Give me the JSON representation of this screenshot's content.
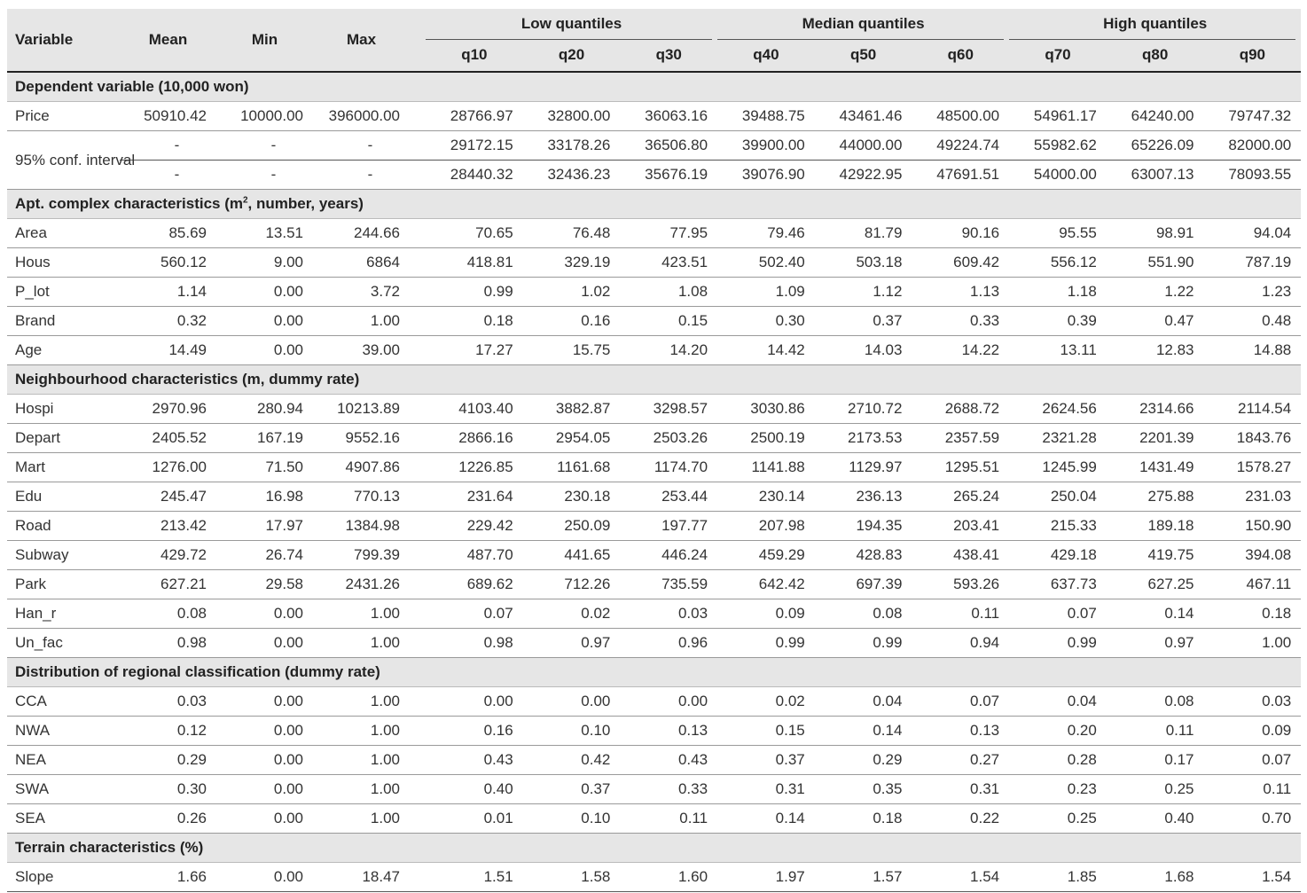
{
  "header": {
    "variable": "Variable",
    "mean": "Mean",
    "min": "Min",
    "max": "Max",
    "groups": [
      "Low quantiles",
      "Median quantiles",
      "High quantiles"
    ],
    "quantiles": [
      "q10",
      "q20",
      "q30",
      "q40",
      "q50",
      "q60",
      "q70",
      "q80",
      "q90"
    ]
  },
  "sections": {
    "dep": "Dependent variable (10,000 won)",
    "apt_pre": "Apt. complex characteristics (m",
    "apt_sup": "2",
    "apt_post": ", number, years)",
    "neigh": "Neighbourhood characteristics (m, dummy rate)",
    "dist": "Distribution of regional classification (dummy rate)",
    "terrain": "Terrain characteristics (%)"
  },
  "price": {
    "label": "Price",
    "v": [
      "50910.42",
      "10000.00",
      "396000.00",
      "28766.97",
      "32800.00",
      "36063.16",
      "39488.75",
      "43461.46",
      "48500.00",
      "54961.17",
      "64240.00",
      "79747.32"
    ]
  },
  "ci": {
    "label": "95% conf. interval",
    "upper": [
      "-",
      "-",
      "-",
      "29172.15",
      "33178.26",
      "36506.80",
      "39900.00",
      "44000.00",
      "49224.74",
      "55982.62",
      "65226.09",
      "82000.00"
    ],
    "lower": [
      "-",
      "-",
      "-",
      "28440.32",
      "32436.23",
      "35676.19",
      "39076.90",
      "42922.95",
      "47691.51",
      "54000.00",
      "63007.13",
      "78093.55"
    ]
  },
  "apt": [
    {
      "label": "Area",
      "v": [
        "85.69",
        "13.51",
        "244.66",
        "70.65",
        "76.48",
        "77.95",
        "79.46",
        "81.79",
        "90.16",
        "95.55",
        "98.91",
        "94.04"
      ]
    },
    {
      "label": "Hous",
      "v": [
        "560.12",
        "9.00",
        "6864",
        "418.81",
        "329.19",
        "423.51",
        "502.40",
        "503.18",
        "609.42",
        "556.12",
        "551.90",
        "787.19"
      ]
    },
    {
      "label": "P_lot",
      "v": [
        "1.14",
        "0.00",
        "3.72",
        "0.99",
        "1.02",
        "1.08",
        "1.09",
        "1.12",
        "1.13",
        "1.18",
        "1.22",
        "1.23"
      ]
    },
    {
      "label": "Brand",
      "v": [
        "0.32",
        "0.00",
        "1.00",
        "0.18",
        "0.16",
        "0.15",
        "0.30",
        "0.37",
        "0.33",
        "0.39",
        "0.47",
        "0.48"
      ]
    },
    {
      "label": "Age",
      "v": [
        "14.49",
        "0.00",
        "39.00",
        "17.27",
        "15.75",
        "14.20",
        "14.42",
        "14.03",
        "14.22",
        "13.11",
        "12.83",
        "14.88"
      ]
    }
  ],
  "neigh": [
    {
      "label": "Hospi",
      "v": [
        "2970.96",
        "280.94",
        "10213.89",
        "4103.40",
        "3882.87",
        "3298.57",
        "3030.86",
        "2710.72",
        "2688.72",
        "2624.56",
        "2314.66",
        "2114.54"
      ]
    },
    {
      "label": "Depart",
      "v": [
        "2405.52",
        "167.19",
        "9552.16",
        "2866.16",
        "2954.05",
        "2503.26",
        "2500.19",
        "2173.53",
        "2357.59",
        "2321.28",
        "2201.39",
        "1843.76"
      ]
    },
    {
      "label": "Mart",
      "v": [
        "1276.00",
        "71.50",
        "4907.86",
        "1226.85",
        "1161.68",
        "1174.70",
        "1141.88",
        "1129.97",
        "1295.51",
        "1245.99",
        "1431.49",
        "1578.27"
      ]
    },
    {
      "label": "Edu",
      "v": [
        "245.47",
        "16.98",
        "770.13",
        "231.64",
        "230.18",
        "253.44",
        "230.14",
        "236.13",
        "265.24",
        "250.04",
        "275.88",
        "231.03"
      ]
    },
    {
      "label": "Road",
      "v": [
        "213.42",
        "17.97",
        "1384.98",
        "229.42",
        "250.09",
        "197.77",
        "207.98",
        "194.35",
        "203.41",
        "215.33",
        "189.18",
        "150.90"
      ]
    },
    {
      "label": "Subway",
      "v": [
        "429.72",
        "26.74",
        "799.39",
        "487.70",
        "441.65",
        "446.24",
        "459.29",
        "428.83",
        "438.41",
        "429.18",
        "419.75",
        "394.08"
      ]
    },
    {
      "label": "Park",
      "v": [
        "627.21",
        "29.58",
        "2431.26",
        "689.62",
        "712.26",
        "735.59",
        "642.42",
        "697.39",
        "593.26",
        "637.73",
        "627.25",
        "467.11"
      ]
    },
    {
      "label": "Han_r",
      "v": [
        "0.08",
        "0.00",
        "1.00",
        "0.07",
        "0.02",
        "0.03",
        "0.09",
        "0.08",
        "0.11",
        "0.07",
        "0.14",
        "0.18"
      ]
    },
    {
      "label": "Un_fac",
      "v": [
        "0.98",
        "0.00",
        "1.00",
        "0.98",
        "0.97",
        "0.96",
        "0.99",
        "0.99",
        "0.94",
        "0.99",
        "0.97",
        "1.00"
      ]
    }
  ],
  "dist": [
    {
      "label": "CCA",
      "v": [
        "0.03",
        "0.00",
        "1.00",
        "0.00",
        "0.00",
        "0.00",
        "0.02",
        "0.04",
        "0.07",
        "0.04",
        "0.08",
        "0.03"
      ]
    },
    {
      "label": "NWA",
      "v": [
        "0.12",
        "0.00",
        "1.00",
        "0.16",
        "0.10",
        "0.13",
        "0.15",
        "0.14",
        "0.13",
        "0.20",
        "0.11",
        "0.09"
      ]
    },
    {
      "label": "NEA",
      "v": [
        "0.29",
        "0.00",
        "1.00",
        "0.43",
        "0.42",
        "0.43",
        "0.37",
        "0.29",
        "0.27",
        "0.28",
        "0.17",
        "0.07"
      ]
    },
    {
      "label": "SWA",
      "v": [
        "0.30",
        "0.00",
        "1.00",
        "0.40",
        "0.37",
        "0.33",
        "0.31",
        "0.35",
        "0.31",
        "0.23",
        "0.25",
        "0.11"
      ]
    },
    {
      "label": "SEA",
      "v": [
        "0.26",
        "0.00",
        "1.00",
        "0.01",
        "0.10",
        "0.11",
        "0.14",
        "0.18",
        "0.22",
        "0.25",
        "0.40",
        "0.70"
      ]
    }
  ],
  "terrain": [
    {
      "label": "Slope",
      "v": [
        "1.66",
        "0.00",
        "18.47",
        "1.51",
        "1.58",
        "1.60",
        "1.97",
        "1.57",
        "1.54",
        "1.85",
        "1.68",
        "1.54"
      ]
    }
  ]
}
